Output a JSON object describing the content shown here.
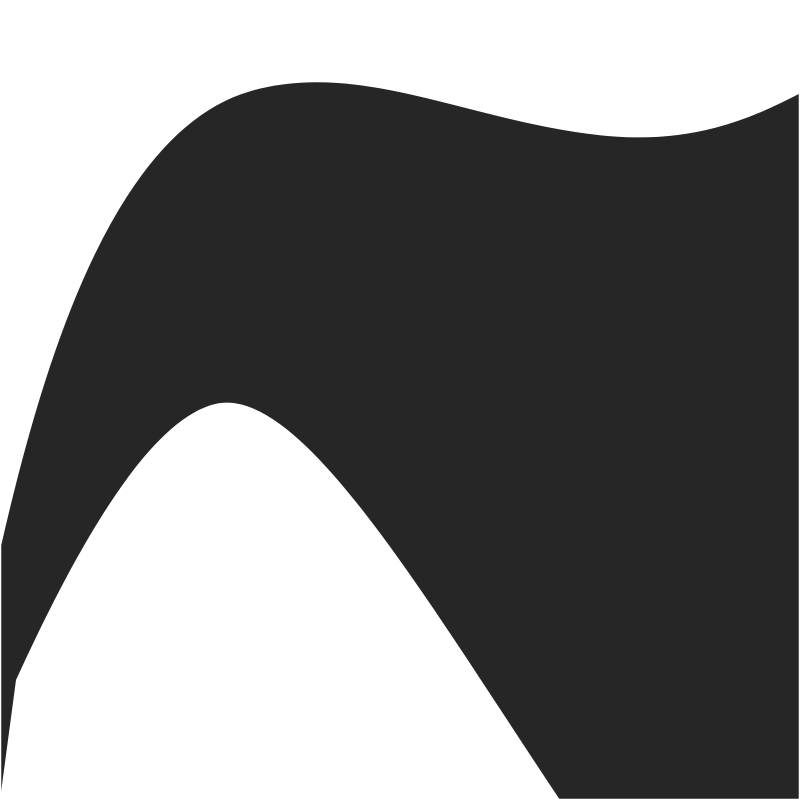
{
  "artwork": {
    "background": "#ffffff",
    "separator_color": "#ffffff",
    "bands": [
      {
        "id": "black",
        "color": "#262626"
      },
      {
        "id": "blue",
        "color": "#1f4294"
      },
      {
        "id": "red",
        "color": "#dd1f37"
      },
      {
        "id": "pink",
        "color": "#ef4e80"
      },
      {
        "id": "orange",
        "color": "#f37f4a"
      },
      {
        "id": "green",
        "color": "#6ebf4e"
      },
      {
        "id": "gray",
        "color": "#747579"
      },
      {
        "id": "khaki",
        "color": "#c1bb98"
      }
    ]
  }
}
